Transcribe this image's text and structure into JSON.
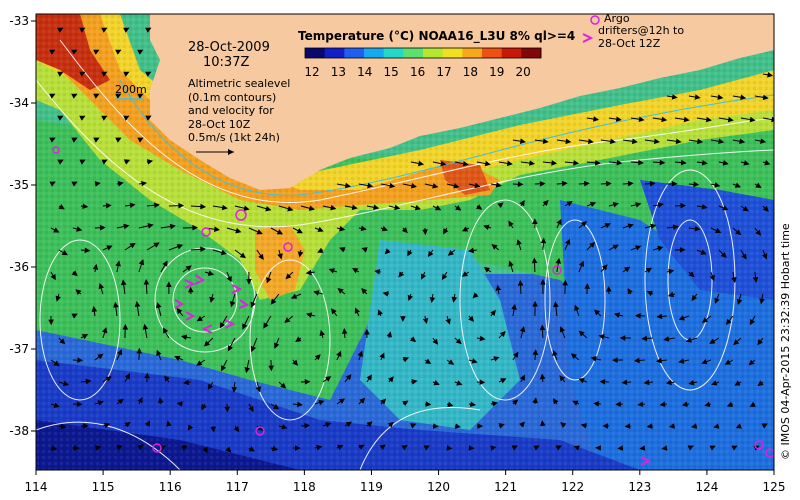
{
  "title": "Temperature (°C) NOAA16_L3U 8% ql>=4",
  "date": "28-Oct-2009",
  "time": "10:37Z",
  "scale_label": "200m",
  "altimetry_lines": [
    "Altimetric sealevel",
    "(0.1m contours)",
    "and velocity for",
    "28-Oct 10Z",
    "0.5m/s (1kt 24h)"
  ],
  "argo_label": "Argo",
  "drifters_lines": [
    "drifters@12h to",
    "28-Oct 12Z"
  ],
  "credit": "© IMOS 04-Apr-2015 23:32:39 Hobart time",
  "colorbar": {
    "ticks": [
      "12",
      "13",
      "14",
      "15",
      "16",
      "17",
      "18",
      "19",
      "20"
    ],
    "colors": [
      "#08086e",
      "#1020c8",
      "#1e5ef0",
      "#18a8f0",
      "#24d8c8",
      "#5ce070",
      "#b4e830",
      "#f0e020",
      "#f8a818",
      "#f05010",
      "#c81808",
      "#800808"
    ]
  },
  "axes": {
    "x_ticks": [
      "114",
      "115",
      "116",
      "117",
      "118",
      "119",
      "120",
      "121",
      "122",
      "123",
      "124",
      "125"
    ],
    "y_ticks": [
      "-33",
      "-34",
      "-35",
      "-36",
      "-37",
      "-38"
    ]
  },
  "colors": {
    "land": "#f6c9a0",
    "contour": "#ffffff",
    "argo": "#e020e0",
    "drifter": "#e020e0",
    "isobath": "#40c0e0"
  }
}
